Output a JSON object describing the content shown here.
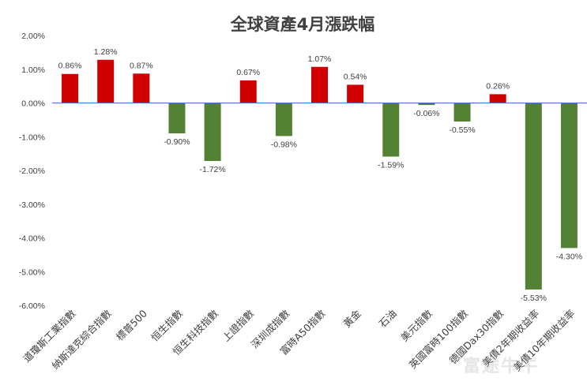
{
  "chart_data": {
    "type": "bar",
    "title": "全球資產4月漲跌幅",
    "categories": [
      "道瓊斯工業指數",
      "納斯達克綜合指數",
      "標普500",
      "恒生指數",
      "恒生科技指數",
      "上證指數",
      "深圳成指數",
      "富時A50指數",
      "黃金",
      "石油",
      "美元指數",
      "英國富時100指數",
      "德國Dax30指數",
      "美債2年期收益率",
      "美債10年期收益率"
    ],
    "values": [
      0.86,
      1.28,
      0.87,
      -0.9,
      -1.72,
      0.67,
      -0.98,
      1.07,
      0.54,
      -1.59,
      -0.06,
      -0.55,
      0.26,
      -5.53,
      -4.3
    ],
    "value_labels": [
      "0.86%",
      "1.28%",
      "0.87%",
      "-0.90%",
      "-1.72%",
      "0.67%",
      "-0.98%",
      "1.07%",
      "0.54%",
      "-1.59%",
      "-0.06%",
      "-0.55%",
      "0.26%",
      "-5.53%",
      "-4.30%"
    ],
    "ylim": [
      -6,
      2
    ],
    "yticks": [
      2,
      1,
      0,
      -1,
      -2,
      -3,
      -4,
      -5,
      -6
    ],
    "ytick_labels": [
      "2.00%",
      "1.00%",
      "0.00%",
      "-1.00%",
      "-2.00%",
      "-3.00%",
      "-4.00%",
      "-5.00%",
      "-6.00%"
    ],
    "grid": false,
    "colors": {
      "positive": "#D10000",
      "negative": "#548235",
      "axis": "#4472C4",
      "text": "#404040",
      "title": "#404040"
    }
  },
  "watermark": "富途牛牛"
}
